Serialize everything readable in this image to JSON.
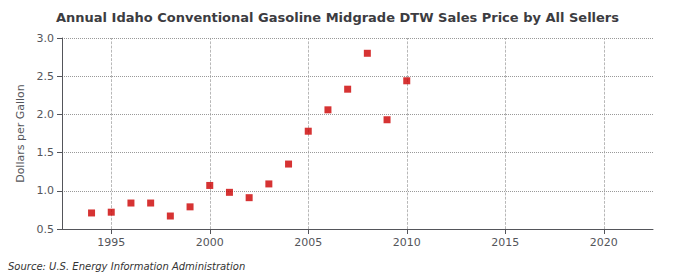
{
  "chart_data": {
    "type": "scatter",
    "title": "Annual Idaho Conventional Gasoline Midgrade DTW Sales Price by All Sellers",
    "ylabel": "Dollars per Gallon",
    "annotation": "Source: U.S. Energy Information Administration",
    "x": [
      1994,
      1995,
      1996,
      1997,
      1998,
      1999,
      2000,
      2001,
      2002,
      2003,
      2004,
      2005,
      2006,
      2007,
      2008,
      2009,
      2010
    ],
    "values": [
      0.71,
      0.72,
      0.84,
      0.84,
      0.67,
      0.79,
      1.07,
      0.98,
      0.91,
      1.09,
      1.35,
      1.78,
      2.06,
      2.33,
      2.8,
      1.93,
      2.44
    ],
    "color": "#CC0000",
    "marker": "square",
    "xlim": [
      1992.5,
      2022.5
    ],
    "xticks": [
      1995,
      2000,
      2005,
      2010,
      2015,
      2020
    ],
    "ylim": [
      0.5,
      3.0
    ],
    "yticks": [
      0.5,
      {
        "value": 1.0,
        "label": "1.0"
      },
      1.5,
      {
        "value": 2.0,
        "label": "2.0"
      },
      2.5,
      {
        "value": 3.0,
        "label": "3.0"
      }
    ],
    "grid": true
  }
}
